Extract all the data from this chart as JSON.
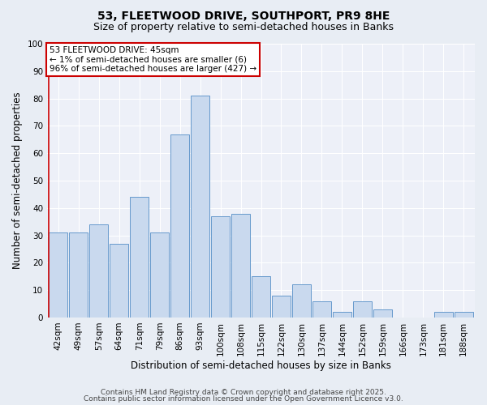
{
  "title1": "53, FLEETWOOD DRIVE, SOUTHPORT, PR9 8HE",
  "title2": "Size of property relative to semi-detached houses in Banks",
  "xlabel": "Distribution of semi-detached houses by size in Banks",
  "ylabel": "Number of semi-detached properties",
  "categories": [
    "42sqm",
    "49sqm",
    "57sqm",
    "64sqm",
    "71sqm",
    "79sqm",
    "86sqm",
    "93sqm",
    "100sqm",
    "108sqm",
    "115sqm",
    "122sqm",
    "130sqm",
    "137sqm",
    "144sqm",
    "152sqm",
    "159sqm",
    "166sqm",
    "173sqm",
    "181sqm",
    "188sqm"
  ],
  "values": [
    31,
    31,
    34,
    27,
    44,
    31,
    67,
    81,
    37,
    38,
    15,
    8,
    12,
    6,
    2,
    6,
    3,
    0,
    0,
    2,
    2
  ],
  "bar_color": "#c9d9ee",
  "bar_edge_color": "#6699cc",
  "annotation_box_text": "53 FLEETWOOD DRIVE: 45sqm\n← 1% of semi-detached houses are smaller (6)\n96% of semi-detached houses are larger (427) →",
  "annotation_box_color": "#ffffff",
  "annotation_box_edge_color": "#cc0000",
  "ylim": [
    0,
    100
  ],
  "yticks": [
    0,
    10,
    20,
    30,
    40,
    50,
    60,
    70,
    80,
    90,
    100
  ],
  "bg_color": "#e8edf4",
  "plot_bg_color": "#edf0f8",
  "grid_color": "#ffffff",
  "footer1": "Contains HM Land Registry data © Crown copyright and database right 2025.",
  "footer2": "Contains public sector information licensed under the Open Government Licence v3.0.",
  "title1_fontsize": 10,
  "title2_fontsize": 9,
  "axis_label_fontsize": 8.5,
  "tick_fontsize": 7.5,
  "annotation_fontsize": 7.5,
  "footer_fontsize": 6.5
}
